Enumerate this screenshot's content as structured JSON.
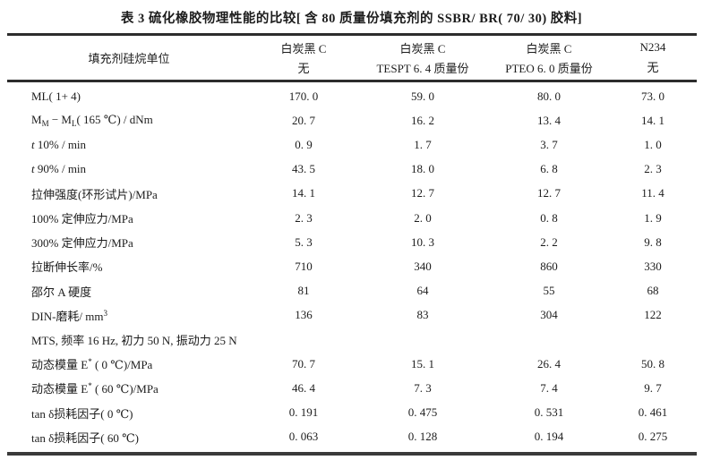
{
  "title": "表 3  硫化橡胶物理性能的比较[ 含 80 质量份填充剂的 SSBR/ BR( 70/ 30) 胶料]",
  "header": {
    "stub": "填充剂硅烷单位",
    "columns": [
      {
        "line1": "白炭黑 C",
        "line2": "无"
      },
      {
        "line1": "白炭黑 C",
        "line2": "TESPT 6. 4 质量份"
      },
      {
        "line1": "白炭黑 C",
        "line2": "PTEO 6. 0 质量份"
      },
      {
        "line1": "N234",
        "line2": "无"
      }
    ]
  },
  "rows": [
    {
      "label_html": "ML( 1+ 4)",
      "values": [
        "170. 0",
        "59. 0",
        "80. 0",
        "73. 0"
      ]
    },
    {
      "label_html": "M<sub>M</sub> − M<sub>L</sub>( 165 ℃) / dNm",
      "values": [
        "20. 7",
        "16. 2",
        "13. 4",
        "14. 1"
      ]
    },
    {
      "label_html": "<i>t</i> 10% / min",
      "values": [
        "0. 9",
        "1. 7",
        "3. 7",
        "1. 0"
      ]
    },
    {
      "label_html": "<i>t</i> 90% / min",
      "values": [
        "43. 5",
        "18. 0",
        "6. 8",
        "2. 3"
      ]
    },
    {
      "label_html": "拉伸强度(环形试片)/MPa",
      "values": [
        "14. 1",
        "12. 7",
        "12. 7",
        "11. 4"
      ]
    },
    {
      "label_html": "100% 定伸应力/MPa",
      "values": [
        "2. 3",
        "2. 0",
        "0. 8",
        "1. 9"
      ]
    },
    {
      "label_html": "300% 定伸应力/MPa",
      "values": [
        "5. 3",
        "10. 3",
        "2. 2",
        "9. 8"
      ]
    },
    {
      "label_html": "拉断伸长率/%",
      "values": [
        "710",
        "340",
        "860",
        "330"
      ]
    },
    {
      "label_html": "邵尔 A 硬度",
      "values": [
        "81",
        "64",
        "55",
        "68"
      ]
    },
    {
      "label_html": "DIN-磨耗/ mm<sup>3</sup>",
      "values": [
        "136",
        "83",
        "304",
        "122"
      ]
    },
    {
      "label_html": "MTS, 频率 16 Hz, 初力 50 N, 振动力 25 N",
      "values": [
        "",
        "",
        "",
        ""
      ]
    },
    {
      "label_html": "动态模量 E<sup>*</sup> ( 0 ℃)/MPa",
      "values": [
        "70. 7",
        "15. 1",
        "26. 4",
        "50. 8"
      ]
    },
    {
      "label_html": "动态模量 E<sup>*</sup> ( 60 ℃)/MPa",
      "values": [
        "46. 4",
        "7. 3",
        "7. 4",
        "9. 7"
      ]
    },
    {
      "label_html": "tan δ损耗因子( 0 ℃)",
      "values": [
        "0. 191",
        "0. 475",
        "0. 531",
        "0. 461"
      ]
    },
    {
      "label_html": "tan δ损耗因子( 60 ℃)",
      "values": [
        "0. 063",
        "0. 128",
        "0. 194",
        "0. 275"
      ]
    }
  ]
}
